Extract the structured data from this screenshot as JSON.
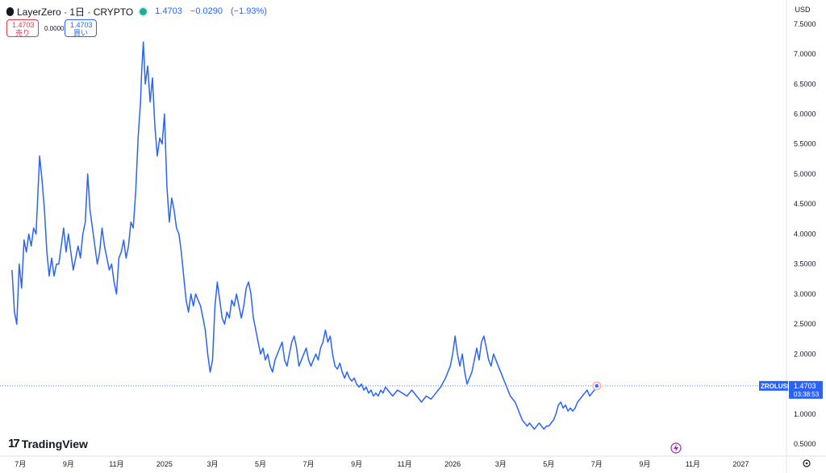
{
  "header": {
    "symbol_title": "LayerZero · 1日 · CRYPTO",
    "price": "1.4703",
    "change": "−0.0290",
    "change_pct": "(−1.93%)",
    "sell_price": "1.4703",
    "sell_label": "売り",
    "spread": "0.0000",
    "buy_price": "1.4703",
    "buy_label": "買い",
    "currency": "USD",
    "colors": {
      "sell": "#f23645",
      "buy": "#2962ff",
      "line": "#2962ff",
      "live": "#22ab94"
    }
  },
  "price_tag": {
    "symbol": "ZROLUSD",
    "price": "1.4703",
    "countdown": "03:38:53"
  },
  "branding": {
    "text": "TradingView"
  },
  "chart_data": {
    "type": "line",
    "y_axis_ticks": [
      "0.5000",
      "1.0000",
      "1.5000",
      "2.0000",
      "2.5000",
      "3.0000",
      "3.5000",
      "4.0000",
      "4.5000",
      "5.0000",
      "5.5000",
      "6.0000",
      "6.5000",
      "7.0000",
      "7.5000"
    ],
    "ylim": [
      0.3,
      7.9
    ],
    "x_axis_ticks": [
      {
        "label": "7月",
        "month": 6
      },
      {
        "label": "9月",
        "month": 8
      },
      {
        "label": "11月",
        "month": 10
      },
      {
        "label": "2025",
        "month": 12
      },
      {
        "label": "3月",
        "month": 14
      },
      {
        "label": "5月",
        "month": 16
      },
      {
        "label": "7月",
        "month": 18
      },
      {
        "label": "9月",
        "month": 20
      },
      {
        "label": "11月",
        "month": 22
      },
      {
        "label": "2026",
        "month": 24
      },
      {
        "label": "3月",
        "month": 26
      },
      {
        "label": "5月",
        "month": 28
      },
      {
        "label": "7月",
        "month": 30
      },
      {
        "label": "9月",
        "month": 32
      },
      {
        "label": "11月",
        "month": 34
      },
      {
        "label": "2027",
        "month": 36
      }
    ],
    "x_month_range": [
      5.15,
      37.9
    ],
    "current_price": 1.4703,
    "series": [
      {
        "points": [
          [
            5.65,
            3.4
          ],
          [
            5.75,
            2.7
          ],
          [
            5.85,
            2.5
          ],
          [
            5.95,
            3.5
          ],
          [
            6.05,
            3.1
          ],
          [
            6.15,
            3.9
          ],
          [
            6.25,
            3.7
          ],
          [
            6.35,
            4.0
          ],
          [
            6.45,
            3.8
          ],
          [
            6.55,
            4.1
          ],
          [
            6.65,
            4.0
          ],
          [
            6.8,
            5.3
          ],
          [
            6.9,
            4.9
          ],
          [
            7.0,
            4.4
          ],
          [
            7.1,
            3.7
          ],
          [
            7.2,
            3.3
          ],
          [
            7.3,
            3.6
          ],
          [
            7.4,
            3.3
          ],
          [
            7.5,
            3.5
          ],
          [
            7.6,
            3.5
          ],
          [
            7.7,
            3.8
          ],
          [
            7.8,
            4.1
          ],
          [
            7.9,
            3.7
          ],
          [
            8.0,
            4.0
          ],
          [
            8.1,
            3.7
          ],
          [
            8.2,
            3.4
          ],
          [
            8.3,
            3.6
          ],
          [
            8.4,
            3.8
          ],
          [
            8.5,
            3.6
          ],
          [
            8.6,
            4.0
          ],
          [
            8.7,
            4.2
          ],
          [
            8.8,
            5.0
          ],
          [
            8.9,
            4.4
          ],
          [
            9.0,
            4.1
          ],
          [
            9.1,
            3.8
          ],
          [
            9.2,
            3.5
          ],
          [
            9.3,
            3.7
          ],
          [
            9.4,
            4.1
          ],
          [
            9.5,
            3.8
          ],
          [
            9.6,
            3.6
          ],
          [
            9.7,
            3.4
          ],
          [
            9.8,
            3.5
          ],
          [
            9.9,
            3.2
          ],
          [
            10.0,
            3.0
          ],
          [
            10.1,
            3.6
          ],
          [
            10.2,
            3.7
          ],
          [
            10.3,
            3.9
          ],
          [
            10.4,
            3.6
          ],
          [
            10.5,
            3.8
          ],
          [
            10.6,
            4.2
          ],
          [
            10.7,
            4.1
          ],
          [
            10.8,
            4.7
          ],
          [
            10.9,
            5.6
          ],
          [
            11.0,
            6.2
          ],
          [
            11.05,
            6.7
          ],
          [
            11.12,
            7.2
          ],
          [
            11.2,
            6.5
          ],
          [
            11.3,
            6.8
          ],
          [
            11.4,
            6.2
          ],
          [
            11.5,
            6.6
          ],
          [
            11.6,
            5.8
          ],
          [
            11.7,
            5.3
          ],
          [
            11.8,
            5.6
          ],
          [
            11.9,
            5.5
          ],
          [
            12.0,
            6.0
          ],
          [
            12.1,
            4.8
          ],
          [
            12.2,
            4.2
          ],
          [
            12.3,
            4.6
          ],
          [
            12.4,
            4.4
          ],
          [
            12.5,
            4.1
          ],
          [
            12.6,
            4.0
          ],
          [
            12.7,
            3.7
          ],
          [
            12.8,
            3.3
          ],
          [
            12.9,
            2.9
          ],
          [
            13.0,
            2.7
          ],
          [
            13.1,
            3.0
          ],
          [
            13.2,
            2.8
          ],
          [
            13.3,
            3.0
          ],
          [
            13.4,
            2.9
          ],
          [
            13.5,
            2.8
          ],
          [
            13.6,
            2.6
          ],
          [
            13.7,
            2.4
          ],
          [
            13.8,
            2.0
          ],
          [
            13.9,
            1.7
          ],
          [
            14.0,
            1.9
          ],
          [
            14.1,
            2.8
          ],
          [
            14.2,
            3.2
          ],
          [
            14.3,
            2.9
          ],
          [
            14.4,
            2.6
          ],
          [
            14.5,
            2.5
          ],
          [
            14.6,
            2.7
          ],
          [
            14.7,
            2.6
          ],
          [
            14.8,
            2.9
          ],
          [
            14.9,
            2.8
          ],
          [
            15.0,
            3.0
          ],
          [
            15.1,
            2.8
          ],
          [
            15.2,
            2.6
          ],
          [
            15.3,
            2.8
          ],
          [
            15.4,
            3.1
          ],
          [
            15.5,
            3.2
          ],
          [
            15.6,
            3.0
          ],
          [
            15.7,
            2.6
          ],
          [
            15.8,
            2.4
          ],
          [
            15.9,
            2.2
          ],
          [
            16.0,
            2.0
          ],
          [
            16.1,
            2.1
          ],
          [
            16.2,
            1.9
          ],
          [
            16.3,
            2.0
          ],
          [
            16.4,
            1.8
          ],
          [
            16.5,
            1.7
          ],
          [
            16.6,
            1.9
          ],
          [
            16.7,
            2.0
          ],
          [
            16.8,
            2.1
          ],
          [
            16.9,
            2.2
          ],
          [
            17.0,
            1.9
          ],
          [
            17.1,
            1.8
          ],
          [
            17.2,
            2.0
          ],
          [
            17.3,
            2.2
          ],
          [
            17.4,
            2.3
          ],
          [
            17.5,
            2.1
          ],
          [
            17.6,
            1.8
          ],
          [
            17.7,
            1.9
          ],
          [
            17.8,
            2.0
          ],
          [
            17.9,
            2.1
          ],
          [
            18.0,
            1.9
          ],
          [
            18.1,
            1.8
          ],
          [
            18.2,
            1.9
          ],
          [
            18.3,
            2.0
          ],
          [
            18.4,
            1.9
          ],
          [
            18.5,
            2.1
          ],
          [
            18.6,
            2.2
          ],
          [
            18.7,
            2.4
          ],
          [
            18.8,
            2.2
          ],
          [
            18.9,
            2.3
          ],
          [
            19.0,
            2.0
          ],
          [
            19.1,
            1.8
          ],
          [
            19.2,
            1.75
          ],
          [
            19.3,
            1.85
          ],
          [
            19.4,
            1.7
          ],
          [
            19.5,
            1.6
          ],
          [
            19.6,
            1.7
          ],
          [
            19.7,
            1.6
          ],
          [
            19.8,
            1.55
          ],
          [
            19.9,
            1.6
          ],
          [
            20.0,
            1.5
          ],
          [
            20.1,
            1.45
          ],
          [
            20.2,
            1.5
          ],
          [
            20.3,
            1.4
          ],
          [
            20.4,
            1.45
          ],
          [
            20.5,
            1.35
          ],
          [
            20.6,
            1.4
          ],
          [
            20.7,
            1.3
          ],
          [
            20.8,
            1.35
          ],
          [
            20.9,
            1.3
          ],
          [
            21.0,
            1.4
          ],
          [
            21.1,
            1.35
          ],
          [
            21.2,
            1.45
          ],
          [
            21.3,
            1.4
          ],
          [
            21.5,
            1.3
          ],
          [
            21.7,
            1.4
          ],
          [
            21.9,
            1.35
          ],
          [
            22.1,
            1.3
          ],
          [
            22.3,
            1.4
          ],
          [
            22.5,
            1.3
          ],
          [
            22.7,
            1.2
          ],
          [
            22.9,
            1.3
          ],
          [
            23.1,
            1.25
          ],
          [
            23.3,
            1.35
          ],
          [
            23.5,
            1.45
          ],
          [
            23.7,
            1.6
          ],
          [
            23.9,
            1.8
          ],
          [
            24.0,
            2.0
          ],
          [
            24.1,
            2.3
          ],
          [
            24.2,
            2.0
          ],
          [
            24.3,
            1.8
          ],
          [
            24.4,
            2.0
          ],
          [
            24.5,
            1.7
          ],
          [
            24.6,
            1.5
          ],
          [
            24.7,
            1.6
          ],
          [
            24.8,
            1.7
          ],
          [
            24.9,
            1.9
          ],
          [
            25.0,
            2.1
          ],
          [
            25.1,
            1.9
          ],
          [
            25.2,
            2.2
          ],
          [
            25.3,
            2.3
          ],
          [
            25.4,
            2.1
          ],
          [
            25.5,
            1.9
          ],
          [
            25.6,
            1.8
          ],
          [
            25.7,
            2.0
          ],
          [
            25.8,
            1.9
          ],
          [
            25.9,
            1.8
          ],
          [
            26.0,
            1.7
          ],
          [
            26.1,
            1.6
          ],
          [
            26.2,
            1.5
          ],
          [
            26.3,
            1.4
          ],
          [
            26.4,
            1.3
          ],
          [
            26.5,
            1.25
          ],
          [
            26.6,
            1.2
          ],
          [
            26.7,
            1.1
          ],
          [
            26.8,
            1.0
          ],
          [
            26.9,
            0.9
          ],
          [
            27.0,
            0.85
          ],
          [
            27.1,
            0.8
          ],
          [
            27.2,
            0.85
          ],
          [
            27.3,
            0.8
          ],
          [
            27.4,
            0.75
          ],
          [
            27.5,
            0.8
          ],
          [
            27.6,
            0.85
          ],
          [
            27.7,
            0.8
          ],
          [
            27.8,
            0.75
          ],
          [
            27.9,
            0.8
          ],
          [
            28.0,
            0.8
          ],
          [
            28.1,
            0.85
          ],
          [
            28.2,
            0.9
          ],
          [
            28.3,
            1.0
          ],
          [
            28.4,
            1.15
          ],
          [
            28.5,
            1.2
          ],
          [
            28.6,
            1.1
          ],
          [
            28.7,
            1.15
          ],
          [
            28.8,
            1.05
          ],
          [
            28.9,
            1.1
          ],
          [
            29.0,
            1.05
          ],
          [
            29.1,
            1.1
          ],
          [
            29.2,
            1.2
          ],
          [
            29.3,
            1.25
          ],
          [
            29.4,
            1.3
          ],
          [
            29.5,
            1.35
          ],
          [
            29.6,
            1.4
          ],
          [
            29.7,
            1.3
          ],
          [
            29.8,
            1.35
          ],
          [
            29.9,
            1.4
          ],
          [
            30.0,
            1.47
          ]
        ]
      }
    ]
  }
}
